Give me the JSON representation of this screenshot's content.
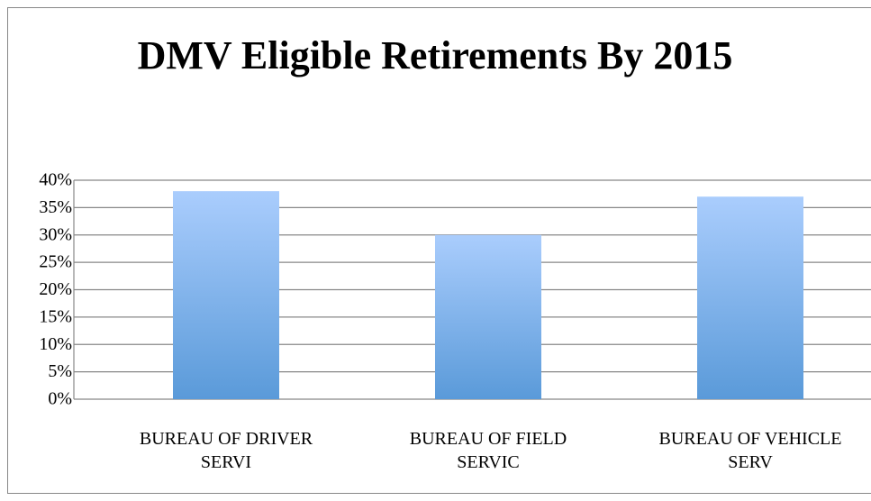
{
  "chart_data": {
    "type": "bar",
    "title": "DMV Eligible Retirements By 2015",
    "categories": [
      "BUREAU OF DRIVER SERVI",
      "BUREAU OF FIELD SERVIC",
      "BUREAU OF VEHICLE SERV"
    ],
    "values": [
      38,
      30,
      37
    ],
    "ylim": [
      0,
      40
    ],
    "yticks": [
      {
        "value": 0,
        "label": "0%"
      },
      {
        "value": 5,
        "label": "5%"
      },
      {
        "value": 10,
        "label": "10%"
      },
      {
        "value": 15,
        "label": "15%"
      },
      {
        "value": 20,
        "label": "20%"
      },
      {
        "value": 25,
        "label": "25%"
      },
      {
        "value": 30,
        "label": "30%"
      },
      {
        "value": 35,
        "label": "35%"
      },
      {
        "value": 40,
        "label": "40%"
      }
    ],
    "grid": true
  }
}
